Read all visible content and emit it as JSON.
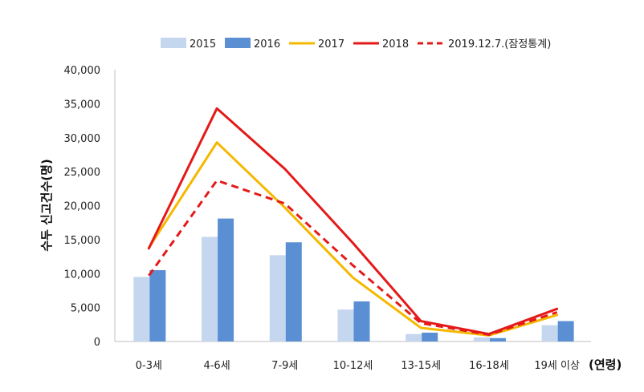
{
  "chart_data": {
    "type": "bar",
    "categories": [
      "0-3세",
      "4-6세",
      "7-9세",
      "10-12세",
      "13-15세",
      "16-18세",
      "19세 이상"
    ],
    "xlabel": "(연령)",
    "ylabel": "수두 신고건수(명)",
    "ylim": [
      0,
      40000
    ],
    "yticks": [
      0,
      5000,
      10000,
      15000,
      20000,
      25000,
      30000,
      35000,
      40000
    ],
    "ytick_labels": [
      "0",
      "5,000",
      "10,000",
      "15,000",
      "20,000",
      "25,000",
      "30,000",
      "35,000",
      "40,000"
    ],
    "grid": false,
    "legend_position": "top",
    "series": [
      {
        "name": "2015",
        "kind": "bar",
        "color": "#c5d6ef",
        "values": [
          9500,
          15400,
          12700,
          4700,
          1100,
          600,
          2400
        ]
      },
      {
        "name": "2016",
        "kind": "bar",
        "color": "#5b8fd4",
        "values": [
          10500,
          18100,
          14600,
          5900,
          1300,
          500,
          3000
        ]
      },
      {
        "name": "2017",
        "kind": "line",
        "color": "#f5b800",
        "dash": "solid",
        "values": [
          13800,
          29300,
          19700,
          9400,
          2000,
          900,
          3900
        ]
      },
      {
        "name": "2018",
        "kind": "line",
        "color": "#e41a1a",
        "dash": "solid",
        "values": [
          13700,
          34300,
          25400,
          14500,
          3000,
          1100,
          4800
        ]
      },
      {
        "name": "2019.12.7.(잠정통계)",
        "kind": "line",
        "color": "#e41a1a",
        "dash": "dashed",
        "values": [
          9700,
          23700,
          20300,
          11200,
          2700,
          1000,
          4300
        ]
      }
    ]
  }
}
